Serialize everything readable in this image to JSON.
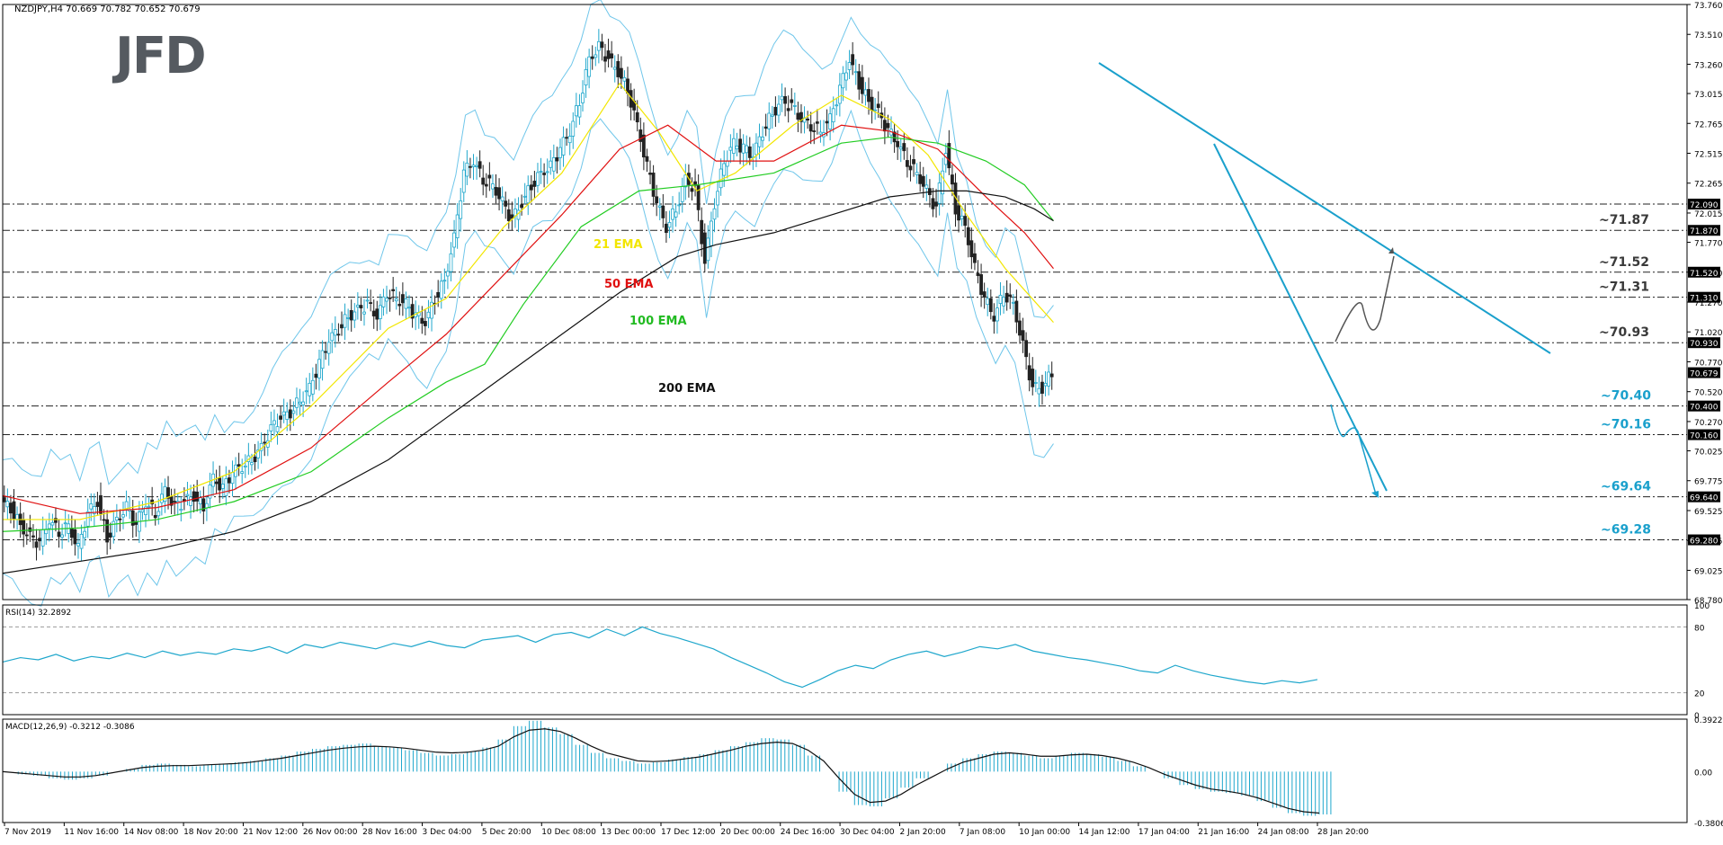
{
  "header": {
    "symbol_info": "NZDJPY,H4  70.669 70.782 70.652 70.679",
    "logo": "JFD"
  },
  "colors": {
    "candle": "#1fa7cc",
    "bearish": "#222222",
    "ema21": "#f2e600",
    "ema50": "#e01010",
    "ema100": "#22cc22",
    "ema200": "#111111",
    "bands": "#6fc6ea",
    "trendline": "#1aa0cc",
    "label_black": "#3a3a3a",
    "label_blue": "#1aa0cc"
  },
  "chart_data": [
    {
      "type": "candlestick",
      "panel": "price",
      "symbol": "NZDJPY",
      "timeframe": "H4",
      "ohlc_last": {
        "open": 70.669,
        "high": 70.782,
        "low": 70.652,
        "close": 70.679
      },
      "ylim": [
        68.78,
        73.76
      ],
      "y_ticks": [
        "73.760",
        "73.510",
        "73.260",
        "73.015",
        "72.765",
        "72.515",
        "72.265",
        "72.015",
        "71.770",
        "71.520",
        "71.270",
        "71.020",
        "70.770",
        "70.520",
        "70.270",
        "70.025",
        "69.775",
        "69.525",
        "69.275",
        "69.025",
        "68.780"
      ],
      "x_ticks": [
        "7 Nov 2019",
        "11 Nov 16:00",
        "14 Nov 08:00",
        "18 Nov 20:00",
        "21 Nov 12:00",
        "26 Nov 00:00",
        "28 Nov 16:00",
        "3 Dec 04:00",
        "5 Dec 20:00",
        "10 Dec 08:00",
        "13 Dec 00:00",
        "17 Dec 12:00",
        "20 Dec 00:00",
        "24 Dec 16:00",
        "30 Dec 04:00",
        "2 Jan 20:00",
        "7 Jan 08:00",
        "10 Jan 00:00",
        "14 Jan 12:00",
        "17 Jan 04:00",
        "21 Jan 16:00",
        "24 Jan 08:00",
        "28 Jan 20:00"
      ],
      "close_path": [
        [
          0,
          69.6
        ],
        [
          10,
          69.55
        ],
        [
          20,
          69.4
        ],
        [
          30,
          69.3
        ],
        [
          40,
          69.25
        ],
        [
          50,
          69.45
        ],
        [
          60,
          69.35
        ],
        [
          70,
          69.4
        ],
        [
          80,
          69.2
        ],
        [
          90,
          69.5
        ],
        [
          100,
          69.6
        ],
        [
          110,
          69.3
        ],
        [
          120,
          69.45
        ],
        [
          130,
          69.55
        ],
        [
          140,
          69.4
        ],
        [
          150,
          69.6
        ],
        [
          160,
          69.5
        ],
        [
          170,
          69.7
        ],
        [
          180,
          69.55
        ],
        [
          190,
          69.6
        ],
        [
          200,
          69.65
        ],
        [
          210,
          69.55
        ],
        [
          220,
          69.8
        ],
        [
          230,
          69.7
        ],
        [
          240,
          69.85
        ],
        [
          250,
          69.9
        ],
        [
          260,
          69.95
        ],
        [
          270,
          70.05
        ],
        [
          280,
          70.2
        ],
        [
          290,
          70.3
        ],
        [
          300,
          70.35
        ],
        [
          310,
          70.45
        ],
        [
          320,
          70.55
        ],
        [
          330,
          70.75
        ],
        [
          340,
          70.95
        ],
        [
          350,
          71.05
        ],
        [
          360,
          71.15
        ],
        [
          370,
          71.2
        ],
        [
          380,
          71.25
        ],
        [
          390,
          71.15
        ],
        [
          400,
          71.35
        ],
        [
          410,
          71.3
        ],
        [
          420,
          71.25
        ],
        [
          430,
          71.15
        ],
        [
          440,
          71.1
        ],
        [
          450,
          71.3
        ],
        [
          460,
          71.45
        ],
        [
          470,
          71.8
        ],
        [
          480,
          72.35
        ],
        [
          490,
          72.45
        ],
        [
          500,
          72.3
        ],
        [
          510,
          72.25
        ],
        [
          520,
          72.1
        ],
        [
          530,
          71.95
        ],
        [
          540,
          72.1
        ],
        [
          550,
          72.25
        ],
        [
          560,
          72.35
        ],
        [
          570,
          72.4
        ],
        [
          580,
          72.55
        ],
        [
          590,
          72.7
        ],
        [
          600,
          72.95
        ],
        [
          610,
          73.3
        ],
        [
          620,
          73.4
        ],
        [
          630,
          73.3
        ],
        [
          640,
          73.2
        ],
        [
          650,
          73.05
        ],
        [
          660,
          72.75
        ],
        [
          670,
          72.4
        ],
        [
          680,
          72.1
        ],
        [
          690,
          71.9
        ],
        [
          700,
          72.05
        ],
        [
          710,
          72.3
        ],
        [
          720,
          72.2
        ],
        [
          730,
          71.6
        ],
        [
          740,
          72.1
        ],
        [
          750,
          72.45
        ],
        [
          760,
          72.6
        ],
        [
          770,
          72.55
        ],
        [
          780,
          72.5
        ],
        [
          790,
          72.7
        ],
        [
          800,
          72.85
        ],
        [
          810,
          72.95
        ],
        [
          820,
          72.9
        ],
        [
          830,
          72.8
        ],
        [
          840,
          72.75
        ],
        [
          850,
          72.7
        ],
        [
          860,
          72.8
        ],
        [
          870,
          73.05
        ],
        [
          880,
          73.3
        ],
        [
          890,
          73.1
        ],
        [
          900,
          72.95
        ],
        [
          910,
          72.85
        ],
        [
          920,
          72.7
        ],
        [
          930,
          72.6
        ],
        [
          940,
          72.45
        ],
        [
          950,
          72.35
        ],
        [
          960,
          72.2
        ],
        [
          970,
          72.05
        ],
        [
          980,
          72.55
        ],
        [
          990,
          72.05
        ],
        [
          1000,
          71.9
        ],
        [
          1010,
          71.55
        ],
        [
          1020,
          71.3
        ],
        [
          1030,
          71.15
        ],
        [
          1040,
          71.35
        ],
        [
          1050,
          71.25
        ],
        [
          1060,
          70.9
        ],
        [
          1070,
          70.55
        ],
        [
          1080,
          70.55
        ],
        [
          1090,
          70.68
        ]
      ],
      "indicators": [
        {
          "name": "21 EMA",
          "color": "#f2e600",
          "points": [
            [
              0,
              69.45
            ],
            [
              80,
              69.45
            ],
            [
              160,
              69.6
            ],
            [
              240,
              69.85
            ],
            [
              320,
              70.4
            ],
            [
              400,
              71.05
            ],
            [
              460,
              71.3
            ],
            [
              520,
              71.9
            ],
            [
              580,
              72.35
            ],
            [
              640,
              73.1
            ],
            [
              680,
              72.7
            ],
            [
              720,
              72.2
            ],
            [
              760,
              72.35
            ],
            [
              820,
              72.75
            ],
            [
              870,
              73.0
            ],
            [
              920,
              72.8
            ],
            [
              960,
              72.5
            ],
            [
              1000,
              72.0
            ],
            [
              1040,
              71.55
            ],
            [
              1090,
              71.1
            ]
          ]
        },
        {
          "name": "50 EMA",
          "color": "#e01010",
          "points": [
            [
              0,
              69.65
            ],
            [
              80,
              69.5
            ],
            [
              160,
              69.55
            ],
            [
              240,
              69.7
            ],
            [
              320,
              70.05
            ],
            [
              400,
              70.6
            ],
            [
              460,
              71.0
            ],
            [
              520,
              71.5
            ],
            [
              580,
              72.0
            ],
            [
              640,
              72.55
            ],
            [
              690,
              72.75
            ],
            [
              740,
              72.45
            ],
            [
              800,
              72.45
            ],
            [
              870,
              72.75
            ],
            [
              920,
              72.7
            ],
            [
              970,
              72.55
            ],
            [
              1020,
              72.15
            ],
            [
              1060,
              71.85
            ],
            [
              1090,
              71.55
            ]
          ]
        },
        {
          "name": "100 EMA",
          "color": "#22cc22",
          "points": [
            [
              0,
              69.35
            ],
            [
              80,
              69.38
            ],
            [
              160,
              69.45
            ],
            [
              240,
              69.6
            ],
            [
              320,
              69.85
            ],
            [
              400,
              70.3
            ],
            [
              460,
              70.6
            ],
            [
              500,
              70.75
            ],
            [
              540,
              71.25
            ],
            [
              600,
              71.9
            ],
            [
              660,
              72.2
            ],
            [
              720,
              72.25
            ],
            [
              800,
              72.35
            ],
            [
              870,
              72.6
            ],
            [
              920,
              72.65
            ],
            [
              970,
              72.6
            ],
            [
              1020,
              72.45
            ],
            [
              1060,
              72.25
            ],
            [
              1090,
              71.95
            ]
          ]
        },
        {
          "name": "200 EMA",
          "color": "#111111",
          "points": [
            [
              0,
              69.0
            ],
            [
              80,
              69.1
            ],
            [
              160,
              69.2
            ],
            [
              240,
              69.35
            ],
            [
              320,
              69.6
            ],
            [
              400,
              69.95
            ],
            [
              460,
              70.3
            ],
            [
              520,
              70.65
            ],
            [
              580,
              71.0
            ],
            [
              640,
              71.35
            ],
            [
              700,
              71.65
            ],
            [
              740,
              71.75
            ],
            [
              800,
              71.85
            ],
            [
              860,
              72.0
            ],
            [
              920,
              72.15
            ],
            [
              970,
              72.2
            ],
            [
              1000,
              72.2
            ],
            [
              1040,
              72.15
            ],
            [
              1070,
              72.05
            ],
            [
              1090,
              71.95
            ]
          ]
        }
      ],
      "horizontal_levels": [
        {
          "value": 72.09,
          "tag": "72.090"
        },
        {
          "value": 71.87,
          "tag": "71.870",
          "annotation": "~71.87"
        },
        {
          "value": 71.52,
          "tag": "71.520",
          "annotation": "~71.52"
        },
        {
          "value": 71.31,
          "tag": "71.310",
          "annotation": "~71.31"
        },
        {
          "value": 70.93,
          "tag": "70.930",
          "annotation": "~70.93"
        },
        {
          "value": 70.4,
          "tag": "70.400",
          "annotation": "~70.40"
        },
        {
          "value": 70.16,
          "tag": "70.160",
          "annotation": "~70.16"
        },
        {
          "value": 69.64,
          "tag": "69.640",
          "annotation": "~69.64"
        },
        {
          "value": 69.28,
          "tag": "69.280",
          "annotation": "~69.28"
        }
      ],
      "last_price_tag": "70.679",
      "indicator_labels": [
        "21 EMA",
        "50 EMA",
        "100 EMA",
        "200 EMA"
      ]
    },
    {
      "type": "line",
      "panel": "rsi",
      "title": "RSI(14) 32.2892",
      "ylim": [
        0,
        100
      ],
      "y_ticks": [
        "100",
        "80",
        "20",
        "0"
      ],
      "levels": [
        80,
        20
      ],
      "values": [
        48,
        52,
        50,
        55,
        49,
        53,
        51,
        56,
        52,
        58,
        54,
        57,
        55,
        60,
        58,
        62,
        56,
        64,
        61,
        66,
        63,
        60,
        65,
        62,
        67,
        63,
        61,
        68,
        70,
        72,
        66,
        73,
        75,
        70,
        78,
        72,
        80,
        74,
        70,
        65,
        60,
        52,
        45,
        38,
        30,
        25,
        32,
        40,
        45,
        42,
        50,
        55,
        58,
        53,
        57,
        62,
        60,
        64,
        58,
        55,
        52,
        50,
        47,
        44,
        40,
        38,
        45,
        40,
        36,
        33,
        30,
        28,
        31,
        29,
        32
      ]
    },
    {
      "type": "bar_line",
      "panel": "macd",
      "title": "MACD(12,26,9) -0.3212 -0.3086",
      "ylim": [
        -0.3806,
        0.3922
      ],
      "y_ticks": [
        "0.3922",
        "0.00",
        "-0.3806"
      ],
      "histogram": [
        0.0,
        -0.02,
        -0.03,
        -0.05,
        -0.06,
        -0.05,
        -0.03,
        0.0,
        0.02,
        0.05,
        0.06,
        0.05,
        0.04,
        0.05,
        0.06,
        0.07,
        0.08,
        0.1,
        0.12,
        0.15,
        0.17,
        0.19,
        0.2,
        0.21,
        0.19,
        0.18,
        0.16,
        0.14,
        0.12,
        0.13,
        0.15,
        0.18,
        0.24,
        0.34,
        0.38,
        0.33,
        0.28,
        0.2,
        0.14,
        0.1,
        0.08,
        0.06,
        0.07,
        0.09,
        0.11,
        0.13,
        0.16,
        0.19,
        0.22,
        0.25,
        0.24,
        0.2,
        0.12,
        0.0,
        -0.15,
        -0.25,
        -0.26,
        -0.2,
        -0.12,
        -0.05,
        0.0,
        0.06,
        0.1,
        0.13,
        0.15,
        0.14,
        0.12,
        0.1,
        0.12,
        0.14,
        0.13,
        0.11,
        0.08,
        0.04,
        0.0,
        -0.05,
        -0.1,
        -0.13,
        -0.15,
        -0.16,
        -0.18,
        -0.22,
        -0.27,
        -0.31,
        -0.33,
        -0.32
      ],
      "signal": [
        0.0,
        -0.01,
        -0.02,
        -0.03,
        -0.04,
        -0.04,
        -0.03,
        -0.01,
        0.01,
        0.03,
        0.04,
        0.045,
        0.045,
        0.05,
        0.055,
        0.06,
        0.07,
        0.085,
        0.1,
        0.12,
        0.14,
        0.16,
        0.175,
        0.185,
        0.19,
        0.185,
        0.175,
        0.16,
        0.145,
        0.14,
        0.145,
        0.16,
        0.19,
        0.26,
        0.31,
        0.32,
        0.3,
        0.25,
        0.19,
        0.14,
        0.11,
        0.08,
        0.075,
        0.08,
        0.095,
        0.11,
        0.135,
        0.16,
        0.19,
        0.21,
        0.22,
        0.21,
        0.16,
        0.08,
        -0.05,
        -0.17,
        -0.23,
        -0.22,
        -0.17,
        -0.1,
        -0.04,
        0.02,
        0.07,
        0.1,
        0.13,
        0.14,
        0.13,
        0.115,
        0.115,
        0.125,
        0.13,
        0.12,
        0.1,
        0.07,
        0.03,
        -0.02,
        -0.06,
        -0.1,
        -0.13,
        -0.145,
        -0.165,
        -0.195,
        -0.235,
        -0.275,
        -0.3,
        -0.31
      ]
    }
  ]
}
